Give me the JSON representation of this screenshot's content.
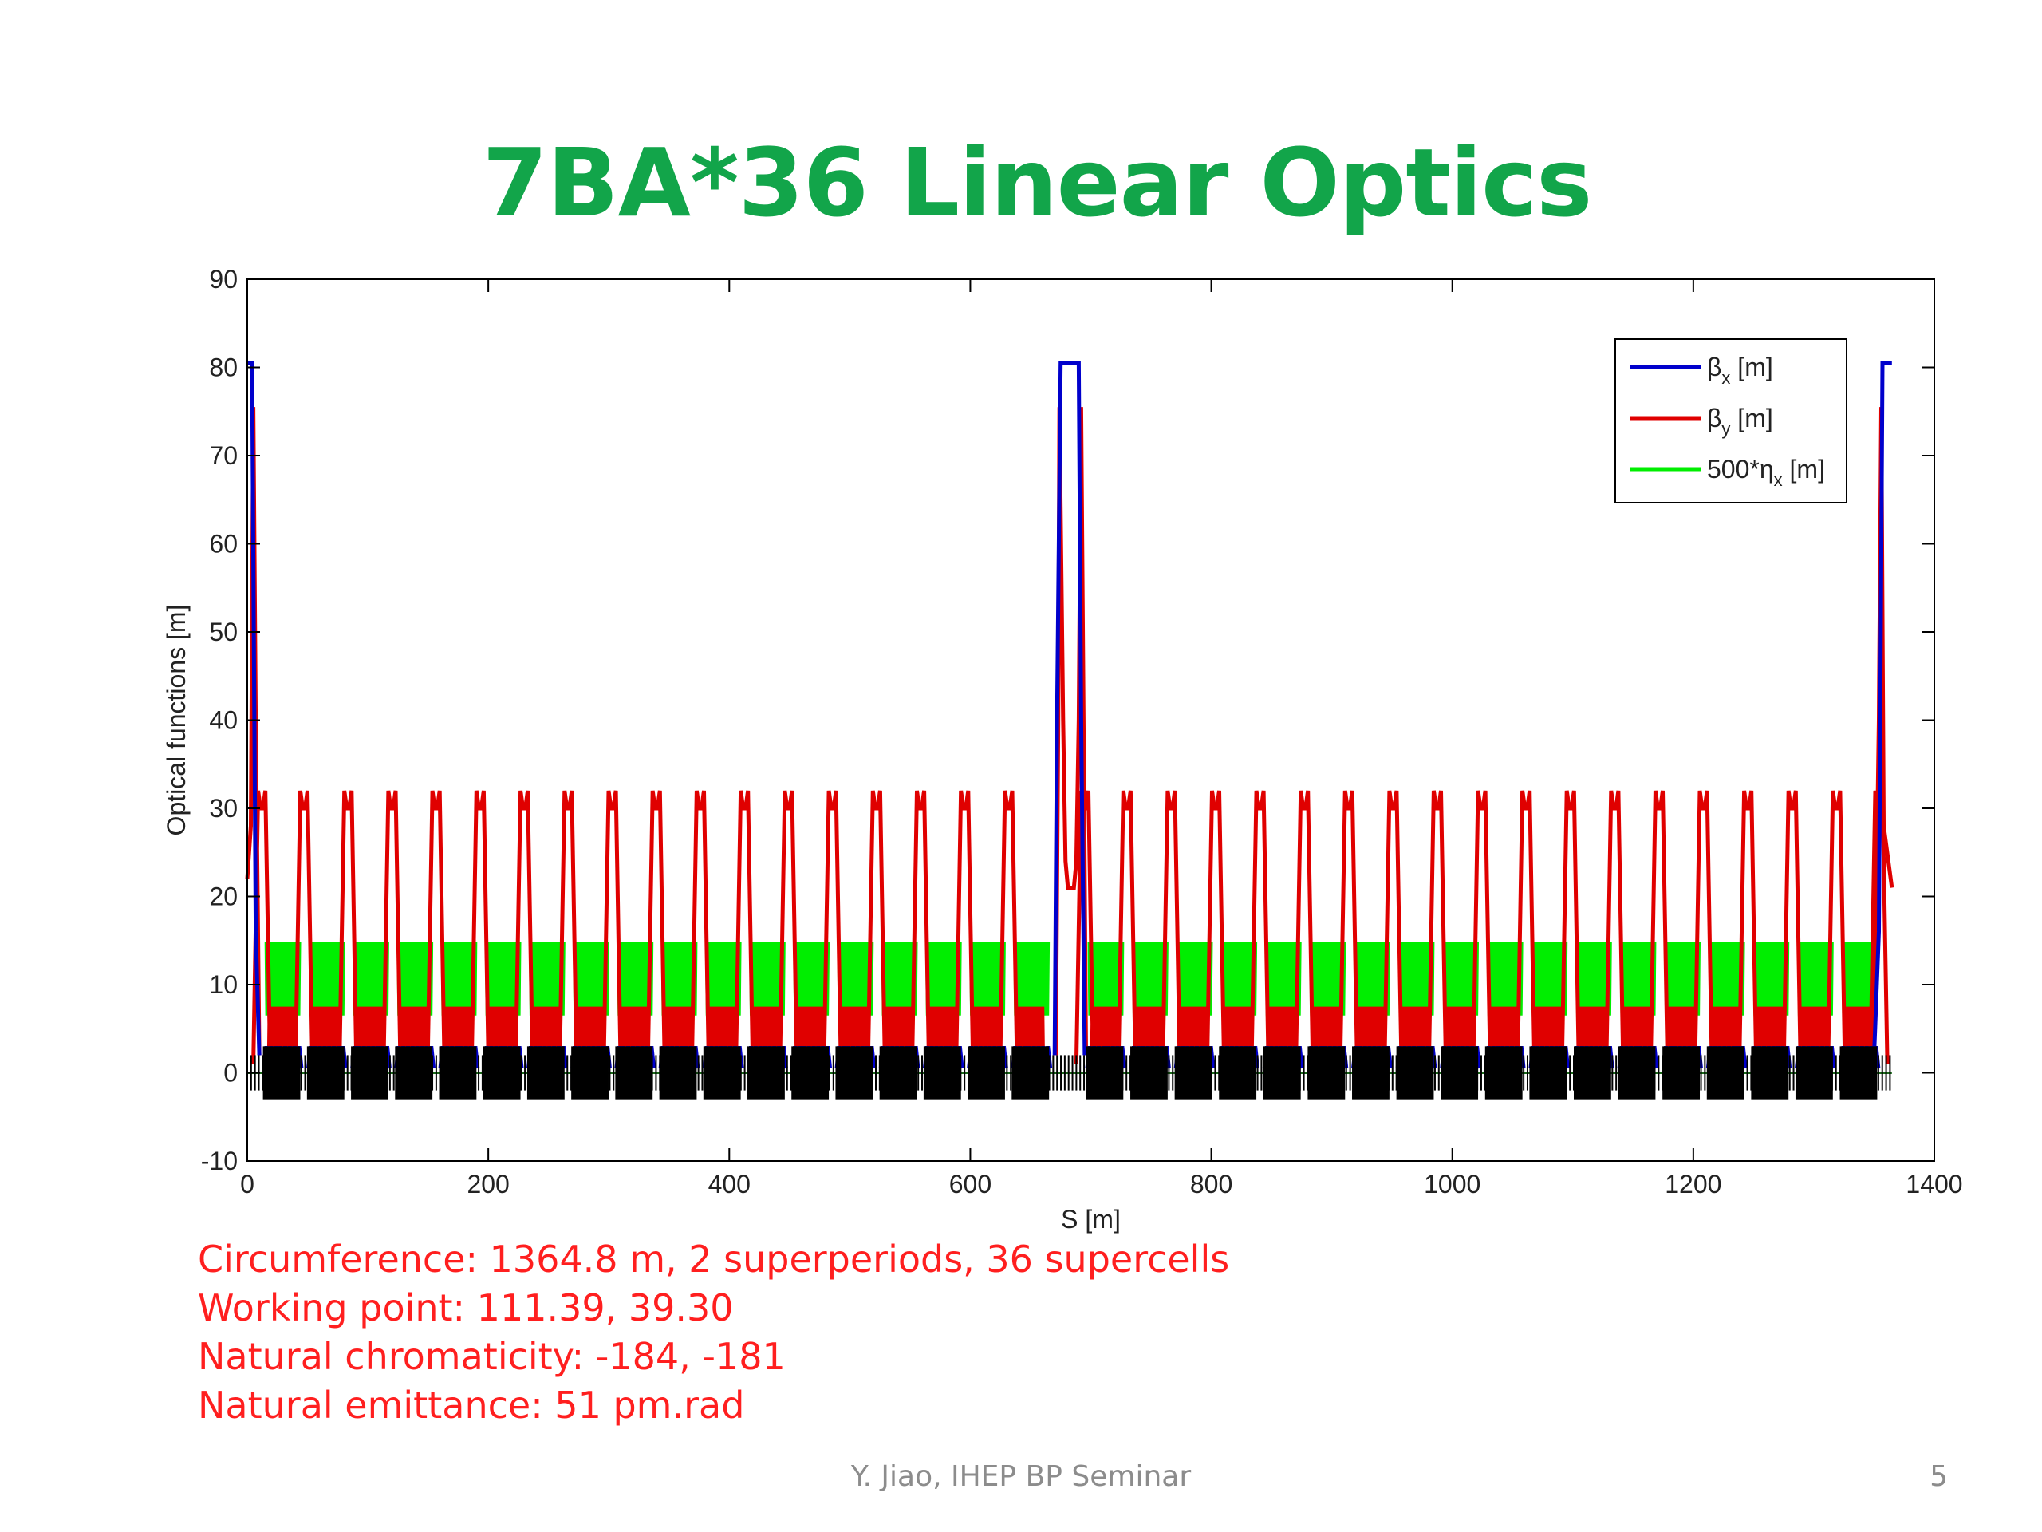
{
  "slide": {
    "title": "7BA*36 Linear Optics",
    "notes": [
      "Circumference: 1364.8 m,  2 superperiods, 36 supercells",
      "Working point: 111.39, 39.30",
      "Natural chromaticity: -184, -181",
      "Natural emittance: 51 pm.rad"
    ],
    "footer": "Y. Jiao, IHEP BP Seminar",
    "page_number": "5"
  },
  "chart_data": {
    "type": "line",
    "xlabel": "S [m]",
    "ylabel": "Optical functions [m]",
    "xlim": [
      0,
      1400
    ],
    "ylim": [
      -10,
      90
    ],
    "xticks": [
      0,
      200,
      400,
      600,
      800,
      1000,
      1200,
      1400
    ],
    "yticks": [
      -10,
      0,
      10,
      20,
      30,
      40,
      50,
      60,
      70,
      80,
      90
    ],
    "grid": false,
    "legend_position": "top-right",
    "circumference": 1364.8,
    "superperiods": 2,
    "supercells": 36,
    "series": [
      {
        "name": "β",
        "subscript": "x",
        "unit": " [m]",
        "color": "#0000cc",
        "long_straight_peak": 80.5,
        "cell_peak": 3.0,
        "cell_floor": 0.5
      },
      {
        "name": "β",
        "subscript": "y",
        "unit": " [m]",
        "color": "#e00000",
        "long_straight_peak": 75.5,
        "cell_peak": 32.0,
        "cell_floor": 1.0,
        "cell_mid_level": 7.5
      },
      {
        "name": "500*η",
        "subscript": "x",
        "unit": " [m]",
        "color": "#00ee00",
        "cell_peak": 14.8,
        "cell_floor": 0.0
      }
    ],
    "lattice_elements": {
      "color": "#000000",
      "band_top": 3.0,
      "band_bottom": -3.0
    }
  }
}
